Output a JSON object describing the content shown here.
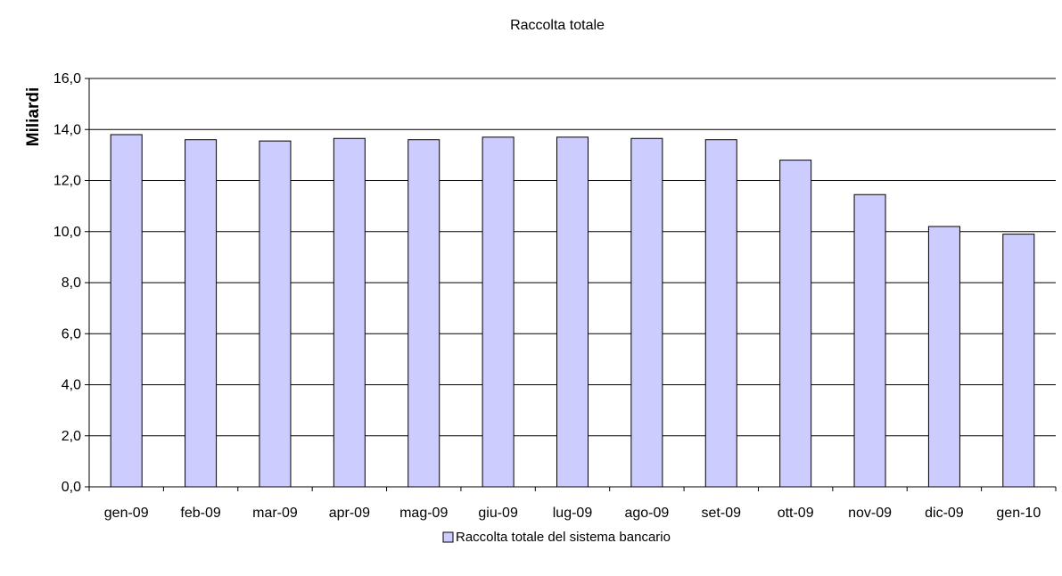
{
  "chart_data": {
    "type": "bar",
    "title": "Raccolta totale",
    "ylabel": "Miliardi",
    "xlabel": "",
    "categories": [
      "gen-09",
      "feb-09",
      "mar-09",
      "apr-09",
      "mag-09",
      "giu-09",
      "lug-09",
      "ago-09",
      "set-09",
      "ott-09",
      "nov-09",
      "dic-09",
      "gen-10"
    ],
    "series": [
      {
        "name": "Raccolta totale del sistema bancario",
        "color": "#ccccff",
        "values": [
          13.8,
          13.6,
          13.55,
          13.65,
          13.6,
          13.7,
          13.7,
          13.65,
          13.6,
          12.8,
          11.45,
          10.2,
          9.9
        ]
      }
    ],
    "ylim": [
      0,
      16
    ],
    "yticks": [
      "0,0",
      "2,0",
      "4,0",
      "6,0",
      "8,0",
      "10,0",
      "12,0",
      "14,0",
      "16,0"
    ],
    "grid": true,
    "legend_position": "bottom"
  }
}
